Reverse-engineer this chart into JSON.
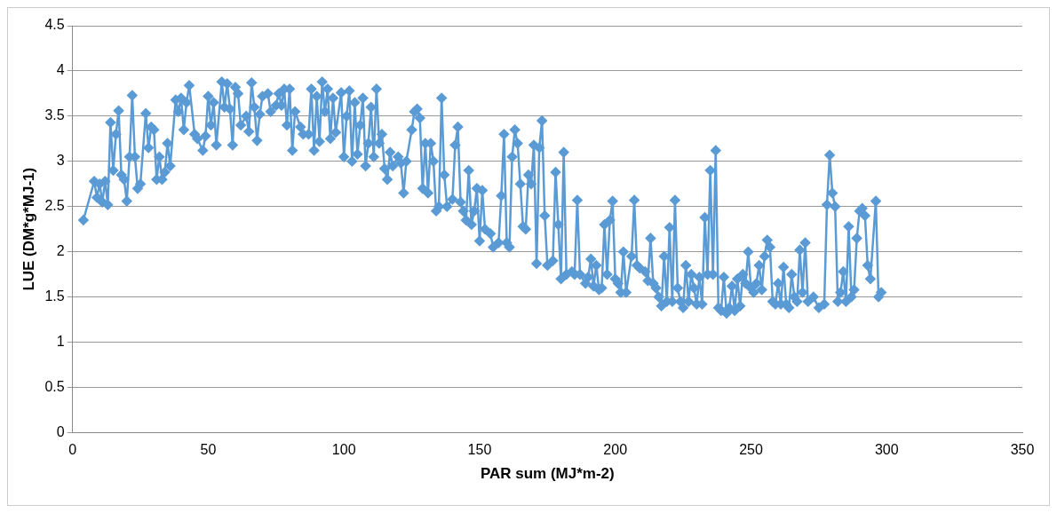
{
  "chart_data": {
    "type": "line",
    "xlabel": "PAR sum (MJ*m-2)",
    "ylabel": "LUE (DM*g*MJ-1)",
    "xlim": [
      0,
      350
    ],
    "xticks": [
      0,
      50,
      100,
      150,
      200,
      250,
      300,
      350
    ],
    "ylim": [
      0,
      4.5
    ],
    "yticks": [
      0,
      0.5,
      1,
      1.5,
      2,
      2.5,
      3,
      3.5,
      4,
      4.5
    ],
    "grid": "y",
    "legend": false,
    "marker": "diamond",
    "line_style": "solid",
    "series": [
      {
        "color": "#5b9bd5",
        "x": [
          4,
          8,
          9,
          10,
          11,
          12,
          13,
          14,
          15,
          16,
          17,
          18,
          19,
          20,
          21,
          22,
          23,
          24,
          25,
          27,
          28,
          29,
          30,
          31,
          32,
          33,
          34,
          35,
          36,
          38,
          39,
          40,
          41,
          42,
          43,
          45,
          46,
          48,
          49,
          50,
          51,
          52,
          53,
          55,
          56,
          57,
          58,
          59,
          60,
          61,
          62,
          64,
          65,
          66,
          67,
          68,
          69,
          70,
          72,
          73,
          75,
          76,
          77,
          78,
          79,
          80,
          81,
          82,
          84,
          85,
          87,
          88,
          89,
          90,
          91,
          92,
          93,
          94,
          95,
          96,
          97,
          99,
          100,
          101,
          102,
          103,
          104,
          105,
          106,
          107,
          108,
          109,
          110,
          111,
          112,
          113,
          114,
          115,
          116,
          117,
          118,
          120,
          121,
          122,
          123,
          125,
          126,
          127,
          128,
          129,
          130,
          131,
          132,
          133,
          134,
          135,
          136,
          137,
          138,
          140,
          141,
          142,
          143,
          144,
          145,
          146,
          147,
          148,
          149,
          150,
          151,
          152,
          154,
          155,
          157,
          158,
          159,
          160,
          161,
          162,
          163,
          164,
          165,
          166,
          167,
          168,
          169,
          170,
          171,
          172,
          173,
          174,
          175,
          177,
          178,
          179,
          180,
          181,
          182,
          184,
          185,
          186,
          187,
          189,
          190,
          191,
          192,
          193,
          194,
          195,
          196,
          197,
          198,
          199,
          200,
          201,
          202,
          203,
          204,
          206,
          207,
          208,
          209,
          211,
          212,
          213,
          214,
          215,
          216,
          217,
          218,
          219,
          220,
          221,
          222,
          223,
          224,
          225,
          226,
          227,
          228,
          229,
          230,
          231,
          232,
          233,
          234,
          235,
          236,
          237,
          238,
          239,
          240,
          241,
          242,
          243,
          244,
          245,
          246,
          247,
          248,
          249,
          250,
          251,
          252,
          253,
          254,
          255,
          256,
          257,
          258,
          259,
          260,
          261,
          262,
          263,
          264,
          265,
          266,
          267,
          268,
          269,
          270,
          271,
          273,
          275,
          277,
          278,
          279,
          280,
          281,
          282,
          283,
          284,
          285,
          286,
          287,
          288,
          289,
          290,
          291,
          292,
          293,
          294,
          296,
          297,
          298
        ],
        "values": [
          2.35,
          2.78,
          2.6,
          2.75,
          2.55,
          2.78,
          2.52,
          3.43,
          2.9,
          3.3,
          3.56,
          2.85,
          2.8,
          2.56,
          3.05,
          3.73,
          3.05,
          2.7,
          2.75,
          3.53,
          3.15,
          3.38,
          3.35,
          2.8,
          3.05,
          2.8,
          2.88,
          3.2,
          2.95,
          3.68,
          3.55,
          3.7,
          3.35,
          3.65,
          3.84,
          3.3,
          3.25,
          3.12,
          3.28,
          3.72,
          3.4,
          3.65,
          3.18,
          3.88,
          3.6,
          3.86,
          3.58,
          3.18,
          3.82,
          3.75,
          3.4,
          3.5,
          3.33,
          3.87,
          3.6,
          3.23,
          3.52,
          3.72,
          3.75,
          3.55,
          3.62,
          3.75,
          3.62,
          3.8,
          3.4,
          3.8,
          3.12,
          3.55,
          3.38,
          3.3,
          3.3,
          3.8,
          3.12,
          3.72,
          3.22,
          3.88,
          3.55,
          3.8,
          3.25,
          3.7,
          3.32,
          3.76,
          3.05,
          3.5,
          3.78,
          3.0,
          3.65,
          3.08,
          3.4,
          3.7,
          2.95,
          3.2,
          3.6,
          3.05,
          3.8,
          3.2,
          3.3,
          2.92,
          2.8,
          3.1,
          2.95,
          3.05,
          2.98,
          2.65,
          3.0,
          3.35,
          3.55,
          3.58,
          3.48,
          2.7,
          3.2,
          2.65,
          3.2,
          3.0,
          2.45,
          2.5,
          3.7,
          2.85,
          2.5,
          2.58,
          3.18,
          3.38,
          2.55,
          2.45,
          2.35,
          2.9,
          2.3,
          2.45,
          2.7,
          2.12,
          2.68,
          2.25,
          2.2,
          2.05,
          2.1,
          2.62,
          3.3,
          2.1,
          2.05,
          3.05,
          3.35,
          3.2,
          2.75,
          2.28,
          2.25,
          2.85,
          2.75,
          3.18,
          1.87,
          3.15,
          3.45,
          2.4,
          1.85,
          1.9,
          2.88,
          2.3,
          1.7,
          3.1,
          1.75,
          1.78,
          1.75,
          2.57,
          1.75,
          1.65,
          1.72,
          1.92,
          1.62,
          1.85,
          1.58,
          1.6,
          2.3,
          1.75,
          2.35,
          2.56,
          1.7,
          1.65,
          1.55,
          2.0,
          1.55,
          1.95,
          2.57,
          1.85,
          1.82,
          1.78,
          1.68,
          2.15,
          1.65,
          1.6,
          1.5,
          1.4,
          1.95,
          1.45,
          2.27,
          1.45,
          2.57,
          1.6,
          1.45,
          1.38,
          1.85,
          1.45,
          1.75,
          1.6,
          1.42,
          1.72,
          1.42,
          2.38,
          1.75,
          2.9,
          1.75,
          3.12,
          1.38,
          1.35,
          1.72,
          1.32,
          1.38,
          1.62,
          1.35,
          1.7,
          1.4,
          1.75,
          1.65,
          2.0,
          1.6,
          1.55,
          1.65,
          1.85,
          1.58,
          1.95,
          2.13,
          2.05,
          1.45,
          1.42,
          1.65,
          1.42,
          1.83,
          1.42,
          1.38,
          1.75,
          1.5,
          1.45,
          2.02,
          1.55,
          2.1,
          1.45,
          1.5,
          1.38,
          1.42,
          2.52,
          3.07,
          2.65,
          2.5,
          1.45,
          1.55,
          1.78,
          1.45,
          2.28,
          1.5,
          1.58,
          2.15,
          2.45,
          2.48,
          2.4,
          1.85,
          1.7,
          2.56,
          1.5,
          1.55
        ]
      }
    ]
  }
}
